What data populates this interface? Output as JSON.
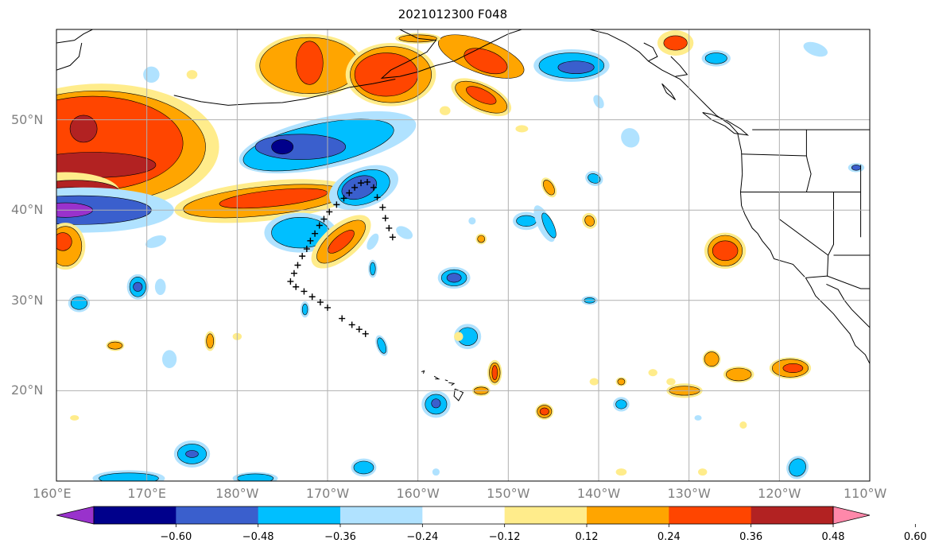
{
  "title": "2021012300 F048",
  "colors": {
    "purple": "#9932CC",
    "navy": "#00008B",
    "royal": "#3A5FCD",
    "sky": "#00BFFF",
    "lightblue": "#B0E2FF",
    "white": "#FFFFFF",
    "yellow": "#FFEC8B",
    "orange": "#FFA500",
    "redorange": "#FF4500",
    "darkred": "#B22222",
    "pink": "#FF88AA"
  },
  "axes": {
    "lon_range": [
      -200,
      -110
    ],
    "lat_range": [
      10,
      60
    ],
    "lon_ticks": [
      {
        "value": -200,
        "label": "160°E"
      },
      {
        "value": -190,
        "label": "170°E"
      },
      {
        "value": -180,
        "label": "180°W"
      },
      {
        "value": -170,
        "label": "170°W"
      },
      {
        "value": -160,
        "label": "160°W"
      },
      {
        "value": -150,
        "label": "150°W"
      },
      {
        "value": -140,
        "label": "140°W"
      },
      {
        "value": -130,
        "label": "130°W"
      },
      {
        "value": -120,
        "label": "120°W"
      },
      {
        "value": -110,
        "label": "110°W"
      }
    ],
    "lat_ticks": [
      {
        "value": 50,
        "label": "50°N"
      },
      {
        "value": 40,
        "label": "40°N"
      },
      {
        "value": 30,
        "label": "30°N"
      },
      {
        "value": 20,
        "label": "20°N"
      }
    ],
    "grid": true
  },
  "colorbar": {
    "levels": [
      -0.6,
      -0.48,
      -0.36,
      -0.24,
      -0.12,
      0.12,
      0.24,
      0.36,
      0.48,
      0.6
    ],
    "labels": [
      "−0.60",
      "−0.48",
      "−0.36",
      "−0.24",
      "−0.12",
      "0.12",
      "0.24",
      "0.36",
      "0.48",
      "0.60"
    ],
    "segment_colors": [
      "#00008B",
      "#3A5FCD",
      "#00BFFF",
      "#B0E2FF",
      "#FFFFFF",
      "#FFEC8B",
      "#FFA500",
      "#FF4500",
      "#B22222"
    ],
    "under_color": "#9932CC",
    "over_color": "#FF88AA",
    "extend": "both"
  },
  "track": [
    [
      -166.3,
      43.0
    ],
    [
      -167.0,
      42.5
    ],
    [
      -167.6,
      41.9
    ],
    [
      -168.2,
      41.3
    ],
    [
      -169.0,
      40.6
    ],
    [
      -169.8,
      39.8
    ],
    [
      -170.4,
      39.0
    ],
    [
      -170.9,
      38.3
    ],
    [
      -171.4,
      37.4
    ],
    [
      -171.9,
      36.6
    ],
    [
      -172.3,
      35.7
    ],
    [
      -172.8,
      34.9
    ],
    [
      -173.3,
      33.9
    ],
    [
      -173.7,
      33.0
    ],
    [
      -174.1,
      32.1
    ],
    [
      -173.5,
      31.5
    ],
    [
      -172.6,
      31.0
    ],
    [
      -171.7,
      30.4
    ],
    [
      -170.8,
      29.8
    ],
    [
      -170.0,
      29.2
    ],
    [
      -168.4,
      28.0
    ],
    [
      -167.3,
      27.3
    ],
    [
      -166.5,
      26.8
    ],
    [
      -165.8,
      26.3
    ],
    [
      -165.6,
      43.1
    ],
    [
      -164.9,
      42.5
    ],
    [
      -164.5,
      41.4
    ],
    [
      -163.9,
      40.3
    ],
    [
      -163.6,
      39.1
    ],
    [
      -163.2,
      38.0
    ],
    [
      -162.8,
      37.0
    ]
  ],
  "features": [
    {
      "c": "yellow",
      "lon": -195,
      "lat": 47,
      "rx": 13,
      "ry": 7
    },
    {
      "c": "orange",
      "lon": -195.5,
      "lat": 47,
      "rx": 12,
      "ry": 6.2
    },
    {
      "c": "redorange",
      "lon": -196,
      "lat": 47.4,
      "rx": 10,
      "ry": 5.2
    },
    {
      "c": "darkred",
      "lon": -196,
      "lat": 45,
      "rx": 7,
      "ry": 1.4
    },
    {
      "c": "darkred",
      "lon": -197,
      "lat": 49,
      "rx": 1.5,
      "ry": 1.5
    },
    {
      "c": "yellow",
      "lon": -199,
      "lat": 42,
      "rx": 6,
      "ry": 2.2
    },
    {
      "c": "darkred",
      "lon": -198,
      "lat": 42,
      "rx": 5,
      "ry": 1.3
    },
    {
      "c": "pink",
      "lon": -198.5,
      "lat": 41.8,
      "rx": 3.5,
      "ry": 0.7
    },
    {
      "c": "lightblue",
      "lon": -197,
      "lat": 40,
      "rx": 10,
      "ry": 2.5
    },
    {
      "c": "royal",
      "lon": -197.5,
      "lat": 40,
      "rx": 8,
      "ry": 1.6
    },
    {
      "c": "purple",
      "lon": -199,
      "lat": 40,
      "rx": 3,
      "ry": 0.8
    },
    {
      "c": "yellow",
      "lon": -199,
      "lat": 36,
      "rx": 2.2,
      "ry": 2.6
    },
    {
      "c": "orange",
      "lon": -199,
      "lat": 36,
      "rx": 1.8,
      "ry": 2.2
    },
    {
      "c": "redorange",
      "lon": -199.3,
      "lat": 36.5,
      "rx": 1,
      "ry": 1
    },
    {
      "c": "lightblue",
      "lon": -170,
      "lat": 47.5,
      "rx": 10,
      "ry": 2.8,
      "rot": -12
    },
    {
      "c": "sky",
      "lon": -171,
      "lat": 47.2,
      "rx": 8.5,
      "ry": 2.3,
      "rot": -12
    },
    {
      "c": "royal",
      "lon": -173,
      "lat": 47,
      "rx": 5,
      "ry": 1.4
    },
    {
      "c": "navy",
      "lon": -175,
      "lat": 47,
      "rx": 1.2,
      "ry": 0.8
    },
    {
      "c": "yellow",
      "lon": -177,
      "lat": 41,
      "rx": 10,
      "ry": 2.2,
      "rot": -6
    },
    {
      "c": "orange",
      "lon": -177,
      "lat": 41,
      "rx": 9,
      "ry": 1.6,
      "rot": -6
    },
    {
      "c": "redorange",
      "lon": -176,
      "lat": 41.3,
      "rx": 6,
      "ry": 0.9,
      "rot": -6
    },
    {
      "c": "lightblue",
      "lon": -166,
      "lat": 42.5,
      "rx": 4,
      "ry": 2.2,
      "rot": -20
    },
    {
      "c": "sky",
      "lon": -166,
      "lat": 42.5,
      "rx": 3,
      "ry": 1.8,
      "rot": -20
    },
    {
      "c": "royal",
      "lon": -166.5,
      "lat": 42.5,
      "rx": 2,
      "ry": 1.2,
      "rot": -20
    },
    {
      "c": "lightblue",
      "lon": -173,
      "lat": 37.5,
      "rx": 4,
      "ry": 2.2
    },
    {
      "c": "sky",
      "lon": -173,
      "lat": 37.5,
      "rx": 3.2,
      "ry": 1.7
    },
    {
      "c": "yellow",
      "lon": -168.5,
      "lat": 36.5,
      "rx": 4,
      "ry": 1.9,
      "rot": -40
    },
    {
      "c": "orange",
      "lon": -168.5,
      "lat": 36.5,
      "rx": 3.3,
      "ry": 1.4,
      "rot": -40
    },
    {
      "c": "redorange",
      "lon": -168.5,
      "lat": 36.5,
      "rx": 1.8,
      "ry": 0.7,
      "rot": -40
    },
    {
      "c": "yellow",
      "lon": -172,
      "lat": 56,
      "rx": 6,
      "ry": 3.5
    },
    {
      "c": "orange",
      "lon": -172,
      "lat": 56,
      "rx": 5.5,
      "ry": 3.1
    },
    {
      "c": "redorange",
      "lon": -172,
      "lat": 56.3,
      "rx": 1.5,
      "ry": 2.4
    },
    {
      "c": "yellow",
      "lon": -163,
      "lat": 55,
      "rx": 5,
      "ry": 3.5
    },
    {
      "c": "orange",
      "lon": -163,
      "lat": 55,
      "rx": 4.5,
      "ry": 3.1
    },
    {
      "c": "redorange",
      "lon": -163.5,
      "lat": 55,
      "rx": 3.5,
      "ry": 2.4
    },
    {
      "c": "orange",
      "lon": -153,
      "lat": 57,
      "rx": 5,
      "ry": 1.8,
      "rot": 20
    },
    {
      "c": "redorange",
      "lon": -152.5,
      "lat": 56.5,
      "rx": 2.5,
      "ry": 1.2,
      "rot": 20
    },
    {
      "c": "yellow",
      "lon": -153,
      "lat": 52.5,
      "rx": 3.6,
      "ry": 1.6,
      "rot": 25
    },
    {
      "c": "orange",
      "lon": -153,
      "lat": 52.5,
      "rx": 3.1,
      "ry": 1.3,
      "rot": 25
    },
    {
      "c": "redorange",
      "lon": -153,
      "lat": 52.7,
      "rx": 1.8,
      "ry": 0.7,
      "rot": 25
    },
    {
      "c": "lightblue",
      "lon": -143,
      "lat": 56,
      "rx": 4.2,
      "ry": 1.8
    },
    {
      "c": "sky",
      "lon": -143,
      "lat": 56,
      "rx": 3.6,
      "ry": 1.4
    },
    {
      "c": "royal",
      "lon": -142.5,
      "lat": 55.8,
      "rx": 2,
      "ry": 0.7
    },
    {
      "c": "yellow",
      "lon": -131.5,
      "lat": 58.5,
      "rx": 2,
      "ry": 1.4
    },
    {
      "c": "redorange",
      "lon": -131.5,
      "lat": 58.5,
      "rx": 1.3,
      "ry": 0.8
    },
    {
      "c": "lightblue",
      "lon": -127,
      "lat": 56.8,
      "rx": 1.6,
      "ry": 0.9
    },
    {
      "c": "sky",
      "lon": -127,
      "lat": 56.8,
      "rx": 1.2,
      "ry": 0.6
    },
    {
      "c": "lightblue",
      "lon": -116,
      "lat": 57.8,
      "rx": 1.4,
      "ry": 0.7,
      "rot": 20
    },
    {
      "c": "yellow",
      "lon": -126,
      "lat": 35.5,
      "rx": 2.3,
      "ry": 2
    },
    {
      "c": "orange",
      "lon": -126,
      "lat": 35.5,
      "rx": 1.9,
      "ry": 1.7
    },
    {
      "c": "redorange",
      "lon": -126,
      "lat": 35.5,
      "rx": 1.4,
      "ry": 1.1
    },
    {
      "c": "lightblue",
      "lon": -148,
      "lat": 38.8,
      "rx": 1.5,
      "ry": 1
    },
    {
      "c": "sky",
      "lon": -148,
      "lat": 38.8,
      "rx": 1.1,
      "ry": 0.6
    },
    {
      "c": "lightblue",
      "lon": -146,
      "lat": 38.5,
      "rx": 0.8,
      "ry": 2.2,
      "rot": -25
    },
    {
      "c": "sky",
      "lon": -145.5,
      "lat": 38.3,
      "rx": 0.5,
      "ry": 1.5,
      "rot": -25
    },
    {
      "c": "lightblue",
      "lon": -156,
      "lat": 32.5,
      "rx": 1.8,
      "ry": 1.2
    },
    {
      "c": "sky",
      "lon": -156,
      "lat": 32.5,
      "rx": 1.4,
      "ry": 0.9
    },
    {
      "c": "royal",
      "lon": -156,
      "lat": 32.5,
      "rx": 0.8,
      "ry": 0.5
    },
    {
      "c": "lightblue",
      "lon": -154.5,
      "lat": 26,
      "rx": 1.5,
      "ry": 1.4
    },
    {
      "c": "sky",
      "lon": -154.5,
      "lat": 26,
      "rx": 1.1,
      "ry": 1
    },
    {
      "c": "lightblue",
      "lon": -158,
      "lat": 18.5,
      "rx": 1.6,
      "ry": 1.5
    },
    {
      "c": "sky",
      "lon": -158,
      "lat": 18.5,
      "rx": 1.2,
      "ry": 1.1
    },
    {
      "c": "royal",
      "lon": -158,
      "lat": 18.6,
      "rx": 0.5,
      "ry": 0.5
    },
    {
      "c": "lightblue",
      "lon": -166,
      "lat": 11.5,
      "rx": 1.4,
      "ry": 1
    },
    {
      "c": "sky",
      "lon": -166,
      "lat": 11.5,
      "rx": 1.1,
      "ry": 0.7
    },
    {
      "c": "lightblue",
      "lon": -185,
      "lat": 13,
      "rx": 2,
      "ry": 1.5
    },
    {
      "c": "sky",
      "lon": -185,
      "lat": 13,
      "rx": 1.6,
      "ry": 1.1
    },
    {
      "c": "royal",
      "lon": -185,
      "lat": 13,
      "rx": 0.7,
      "ry": 0.4
    },
    {
      "c": "lightblue",
      "lon": -192,
      "lat": 10.3,
      "rx": 4,
      "ry": 0.9
    },
    {
      "c": "sky",
      "lon": -192,
      "lat": 10.3,
      "rx": 3.3,
      "ry": 0.6
    },
    {
      "c": "lightblue",
      "lon": -197.5,
      "lat": 29.7,
      "rx": 1.2,
      "ry": 1
    },
    {
      "c": "sky",
      "lon": -197.5,
      "lat": 29.7,
      "rx": 0.9,
      "ry": 0.7
    },
    {
      "c": "lightblue",
      "lon": -191,
      "lat": 31.5,
      "rx": 1.2,
      "ry": 1.4
    },
    {
      "c": "sky",
      "lon": -191,
      "lat": 31.5,
      "rx": 0.9,
      "ry": 1.1
    },
    {
      "c": "royal",
      "lon": -191,
      "lat": 31.5,
      "rx": 0.5,
      "ry": 0.5
    },
    {
      "c": "lightblue",
      "lon": -188.5,
      "lat": 31.5,
      "rx": 0.6,
      "ry": 0.9
    },
    {
      "c": "lightblue",
      "lon": -189.5,
      "lat": 55,
      "rx": 0.9,
      "ry": 0.9
    },
    {
      "c": "yellow",
      "lon": -183,
      "lat": 25.5,
      "rx": 0.6,
      "ry": 1.1
    },
    {
      "c": "orange",
      "lon": -183,
      "lat": 25.5,
      "rx": 0.4,
      "ry": 0.8
    },
    {
      "c": "yellow",
      "lon": -193.5,
      "lat": 25,
      "rx": 1,
      "ry": 0.6
    },
    {
      "c": "orange",
      "lon": -193.5,
      "lat": 25,
      "rx": 0.8,
      "ry": 0.4
    },
    {
      "c": "lightblue",
      "lon": -187.5,
      "lat": 23.5,
      "rx": 0.8,
      "ry": 1
    },
    {
      "c": "lightblue",
      "lon": -165,
      "lat": 33.5,
      "rx": 0.5,
      "ry": 1
    },
    {
      "c": "sky",
      "lon": -165,
      "lat": 33.5,
      "rx": 0.3,
      "ry": 0.7
    },
    {
      "c": "lightblue",
      "lon": -172.5,
      "lat": 29,
      "rx": 0.5,
      "ry": 0.9
    },
    {
      "c": "sky",
      "lon": -172.5,
      "lat": 29,
      "rx": 0.3,
      "ry": 0.6
    },
    {
      "c": "lightblue",
      "lon": -189,
      "lat": 36.5,
      "rx": 1.2,
      "ry": 0.6,
      "rot": -20
    },
    {
      "c": "lightblue",
      "lon": -164,
      "lat": 25,
      "rx": 0.6,
      "ry": 1.2,
      "rot": -20
    },
    {
      "c": "sky",
      "lon": -164,
      "lat": 25,
      "rx": 0.4,
      "ry": 0.9,
      "rot": -20
    },
    {
      "c": "lightblue",
      "lon": -165,
      "lat": 36.5,
      "rx": 0.5,
      "ry": 1,
      "rot": 30
    },
    {
      "c": "yellow",
      "lon": -145.5,
      "lat": 42.5,
      "rx": 0.7,
      "ry": 1.2,
      "rot": -30
    },
    {
      "c": "orange",
      "lon": -145.5,
      "lat": 42.5,
      "rx": 0.5,
      "ry": 0.9,
      "rot": -30
    },
    {
      "c": "yellow",
      "lon": -141,
      "lat": 38.8,
      "rx": 0.8,
      "ry": 0.9,
      "rot": -30
    },
    {
      "c": "orange",
      "lon": -141,
      "lat": 38.8,
      "rx": 0.5,
      "ry": 0.6,
      "rot": -30
    },
    {
      "c": "yellow",
      "lon": -153,
      "lat": 36.8,
      "rx": 0.6,
      "ry": 0.6
    },
    {
      "c": "orange",
      "lon": -153,
      "lat": 36.8,
      "rx": 0.4,
      "ry": 0.4
    },
    {
      "c": "yellow",
      "lon": -157,
      "lat": 51,
      "rx": 0.6,
      "ry": 0.5
    },
    {
      "c": "yellow",
      "lon": -148.5,
      "lat": 49,
      "rx": 0.7,
      "ry": 0.4
    },
    {
      "c": "lightblue",
      "lon": -140.5,
      "lat": 43.5,
      "rx": 1,
      "ry": 0.8,
      "rot": 20
    },
    {
      "c": "sky",
      "lon": -140.5,
      "lat": 43.5,
      "rx": 0.7,
      "ry": 0.5,
      "rot": 20
    },
    {
      "c": "lightblue",
      "lon": -140,
      "lat": 52,
      "rx": 0.5,
      "ry": 0.8,
      "rot": -30
    },
    {
      "c": "lightblue",
      "lon": -136.5,
      "lat": 48,
      "rx": 1,
      "ry": 1.1,
      "rot": -30
    },
    {
      "c": "lightblue",
      "lon": -154,
      "lat": 38.8,
      "rx": 0.4,
      "ry": 0.4
    },
    {
      "c": "lightblue",
      "lon": -161.5,
      "lat": 37.5,
      "rx": 1,
      "ry": 0.6,
      "rot": 30
    },
    {
      "c": "yellow",
      "lon": -151.5,
      "lat": 22,
      "rx": 0.8,
      "ry": 1.4
    },
    {
      "c": "orange",
      "lon": -151.5,
      "lat": 22,
      "rx": 0.6,
      "ry": 1.1
    },
    {
      "c": "redorange",
      "lon": -151.5,
      "lat": 22,
      "rx": 0.3,
      "ry": 0.8
    },
    {
      "c": "yellow",
      "lon": -146,
      "lat": 17.7,
      "rx": 1,
      "ry": 0.9
    },
    {
      "c": "orange",
      "lon": -146,
      "lat": 17.7,
      "rx": 0.8,
      "ry": 0.7
    },
    {
      "c": "redorange",
      "lon": -146,
      "lat": 17.7,
      "rx": 0.5,
      "ry": 0.4
    },
    {
      "c": "yellow",
      "lon": -153,
      "lat": 20,
      "rx": 1,
      "ry": 0.6
    },
    {
      "c": "orange",
      "lon": -153,
      "lat": 20,
      "rx": 0.8,
      "ry": 0.4
    },
    {
      "c": "lightblue",
      "lon": -141,
      "lat": 30,
      "rx": 0.9,
      "ry": 0.5
    },
    {
      "c": "sky",
      "lon": -141,
      "lat": 30,
      "rx": 0.6,
      "ry": 0.3
    },
    {
      "c": "lightblue",
      "lon": -137.5,
      "lat": 18.5,
      "rx": 0.9,
      "ry": 0.8
    },
    {
      "c": "sky",
      "lon": -137.5,
      "lat": 18.5,
      "rx": 0.6,
      "ry": 0.5
    },
    {
      "c": "yellow",
      "lon": -127.5,
      "lat": 23.5,
      "rx": 1,
      "ry": 1
    },
    {
      "c": "orange",
      "lon": -127.5,
      "lat": 23.5,
      "rx": 0.8,
      "ry": 0.8
    },
    {
      "c": "yellow",
      "lon": -124.5,
      "lat": 21.8,
      "rx": 1.7,
      "ry": 0.9
    },
    {
      "c": "orange",
      "lon": -124.5,
      "lat": 21.8,
      "rx": 1.4,
      "ry": 0.7
    },
    {
      "c": "yellow",
      "lon": -118.8,
      "lat": 22.5,
      "rx": 2.3,
      "ry": 1.2
    },
    {
      "c": "orange",
      "lon": -118.8,
      "lat": 22.5,
      "rx": 2,
      "ry": 1
    },
    {
      "c": "redorange",
      "lon": -118.5,
      "lat": 22.5,
      "rx": 1.1,
      "ry": 0.5
    },
    {
      "c": "yellow",
      "lon": -130.5,
      "lat": 20,
      "rx": 2,
      "ry": 0.8
    },
    {
      "c": "orange",
      "lon": -130.5,
      "lat": 20,
      "rx": 1.7,
      "ry": 0.5
    },
    {
      "c": "yellow",
      "lon": -137.5,
      "lat": 21,
      "rx": 0.6,
      "ry": 0.5
    },
    {
      "c": "orange",
      "lon": -137.5,
      "lat": 21,
      "rx": 0.4,
      "ry": 0.35
    },
    {
      "c": "yellow",
      "lon": -134,
      "lat": 22,
      "rx": 0.5,
      "ry": 0.4
    },
    {
      "c": "yellow",
      "lon": -132,
      "lat": 21,
      "rx": 0.5,
      "ry": 0.4
    },
    {
      "c": "yellow",
      "lon": -140.5,
      "lat": 21,
      "rx": 0.5,
      "ry": 0.4
    },
    {
      "c": "yellow",
      "lon": -155.5,
      "lat": 26,
      "rx": 0.5,
      "ry": 0.5
    },
    {
      "c": "yellow",
      "lon": -124,
      "lat": 16.2,
      "rx": 0.4,
      "ry": 0.4
    },
    {
      "c": "yellow",
      "lon": -137.5,
      "lat": 11,
      "rx": 0.6,
      "ry": 0.4
    },
    {
      "c": "yellow",
      "lon": -128.5,
      "lat": 11,
      "rx": 0.5,
      "ry": 0.4
    },
    {
      "c": "yellow",
      "lon": -198,
      "lat": 17,
      "rx": 0.5,
      "ry": 0.3
    },
    {
      "c": "yellow",
      "lon": -180,
      "lat": 26,
      "rx": 0.5,
      "ry": 0.4
    },
    {
      "c": "yellow",
      "lon": -160,
      "lat": 59,
      "rx": 2.5,
      "ry": 0.6
    },
    {
      "c": "orange",
      "lon": -160,
      "lat": 59,
      "rx": 2.1,
      "ry": 0.4
    },
    {
      "c": "yellow",
      "lon": -185,
      "lat": 55,
      "rx": 0.6,
      "ry": 0.5
    },
    {
      "c": "lightblue",
      "lon": -118,
      "lat": 11.5,
      "rx": 1.2,
      "ry": 1.3,
      "rot": 30
    },
    {
      "c": "sky",
      "lon": -118,
      "lat": 11.5,
      "rx": 0.9,
      "ry": 1,
      "rot": 30
    },
    {
      "c": "lightblue",
      "lon": -178,
      "lat": 10.3,
      "rx": 2.5,
      "ry": 0.7
    },
    {
      "c": "sky",
      "lon": -178,
      "lat": 10.3,
      "rx": 2,
      "ry": 0.5
    },
    {
      "c": "lightblue",
      "lon": -158,
      "lat": 11,
      "rx": 0.4,
      "ry": 0.4
    },
    {
      "c": "lightblue",
      "lon": -129,
      "lat": 17,
      "rx": 0.4,
      "ry": 0.3
    },
    {
      "c": "lightblue",
      "lon": -111.5,
      "lat": 44.7,
      "rx": 0.9,
      "ry": 0.5
    },
    {
      "c": "royal",
      "lon": -111.5,
      "lat": 44.7,
      "rx": 0.5,
      "ry": 0.3
    }
  ]
}
